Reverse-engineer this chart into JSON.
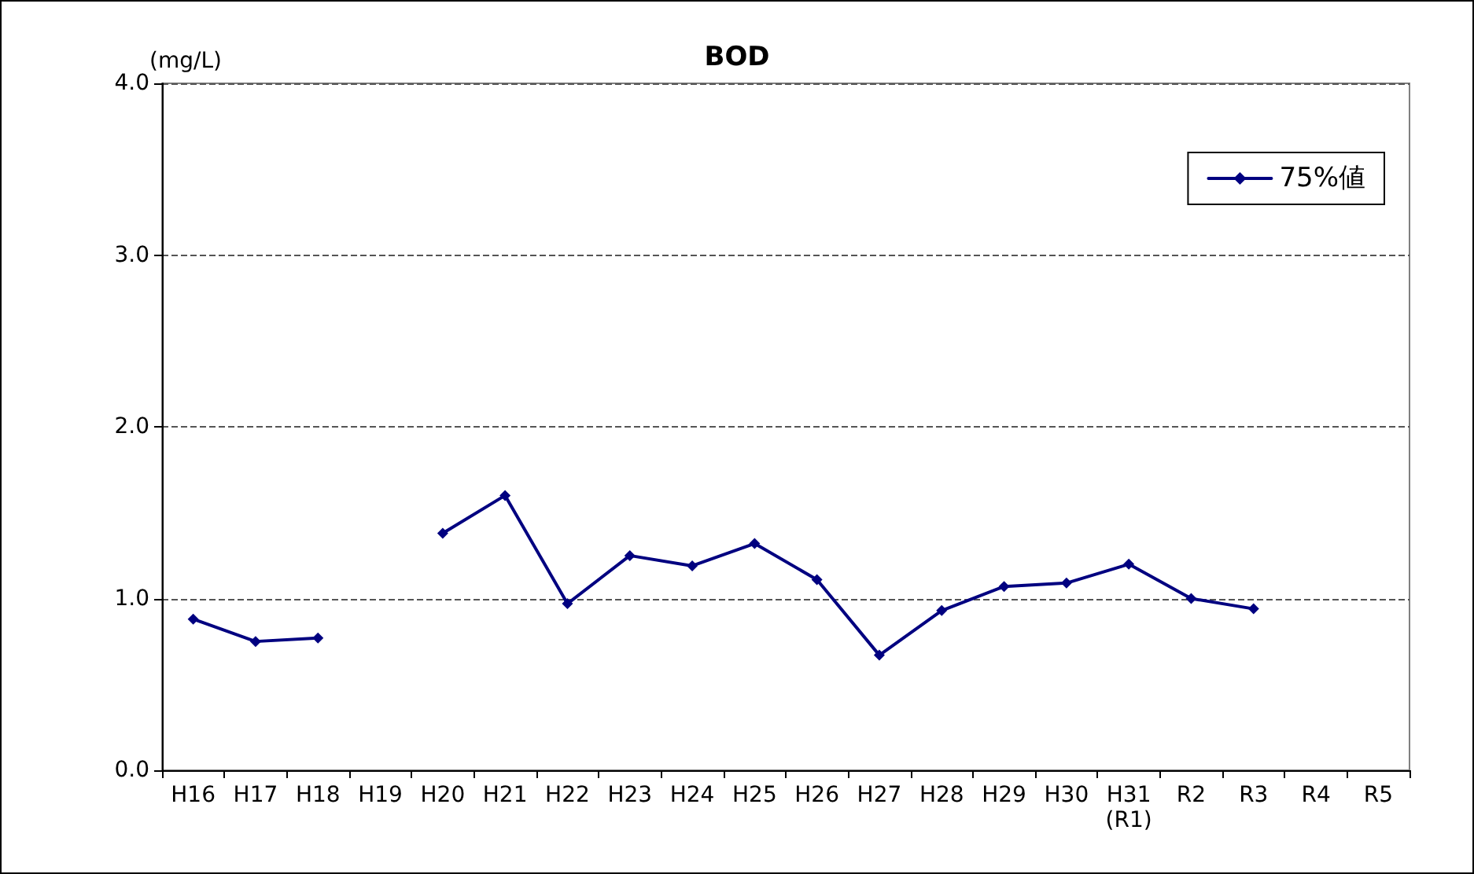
{
  "chart_data": {
    "type": "line",
    "title": "BOD",
    "ylabel": "(mg/L)",
    "categories": [
      "H16",
      "H17",
      "H18",
      "H19",
      "H20",
      "H21",
      "H22",
      "H23",
      "H24",
      "H25",
      "H26",
      "H27",
      "H28",
      "H29",
      "H30",
      "H31\n(R1)",
      "R2",
      "R3",
      "R4",
      "R5"
    ],
    "series": [
      {
        "name": "75%値",
        "color": "#000080",
        "values": [
          0.88,
          0.75,
          0.77,
          null,
          1.38,
          1.6,
          0.97,
          1.25,
          1.19,
          1.32,
          1.11,
          0.67,
          0.93,
          1.07,
          1.09,
          1.2,
          1.0,
          0.94,
          null,
          null
        ]
      }
    ],
    "ylim": [
      0,
      4
    ],
    "yticks": [
      {
        "value": 0,
        "label": "0.0"
      },
      {
        "value": 1,
        "label": "1.0"
      },
      {
        "value": 2,
        "label": "2.0"
      },
      {
        "value": 3,
        "label": "3.0"
      },
      {
        "value": 4,
        "label": "4.0"
      }
    ],
    "grid": "y",
    "legend": "top right",
    "marker": "diamond",
    "line_style": "solid"
  }
}
